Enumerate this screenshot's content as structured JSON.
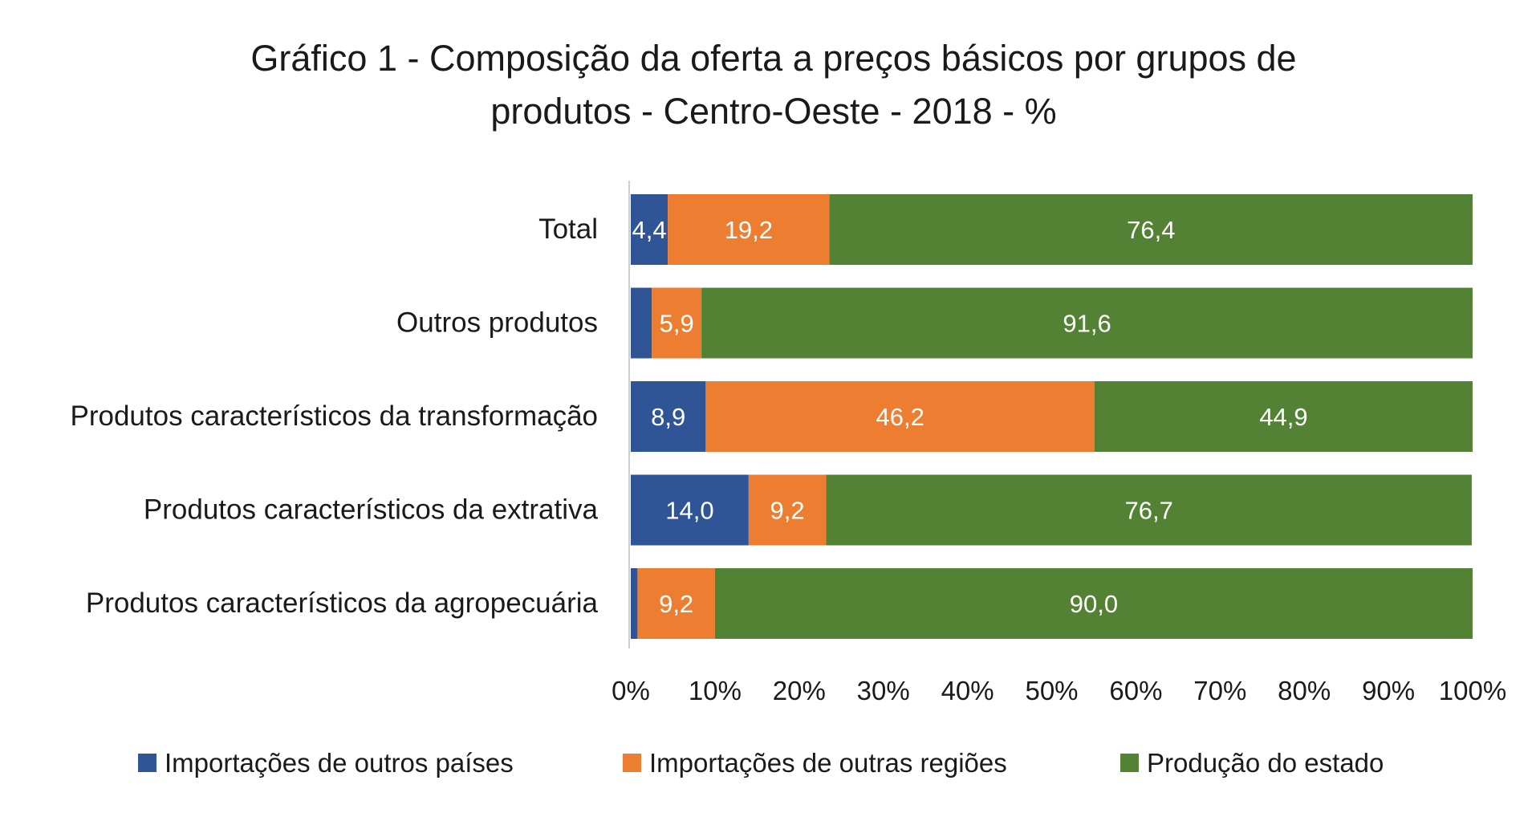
{
  "chart_data": {
    "type": "bar",
    "orientation": "horizontal",
    "stacked": true,
    "percent": true,
    "title_lines": [
      "Gráfico 1 - Composição da oferta a preços básicos por grupos de",
      "produtos - Centro-Oeste - 2018 - %"
    ],
    "categories": [
      "Total",
      "Outros produtos",
      "Produtos característicos da transformação",
      "Produtos característicos da extrativa",
      "Produtos característicos da agropecuária"
    ],
    "series": [
      {
        "name": "Importações de outros países",
        "color": "#2F5597",
        "values": [
          4.4,
          2.5,
          8.9,
          14.0,
          0.8
        ],
        "labels": [
          "4,4",
          "",
          "8,9",
          "14,0",
          ""
        ]
      },
      {
        "name": "Importações de outras regiões",
        "color": "#ED7D31",
        "values": [
          19.2,
          5.9,
          46.2,
          9.2,
          9.2
        ],
        "labels": [
          "19,2",
          "5,9",
          "46,2",
          "9,2",
          "9,2"
        ]
      },
      {
        "name": "Produção do estado",
        "color": "#548235",
        "values": [
          76.4,
          91.6,
          44.9,
          76.7,
          90.0
        ],
        "labels": [
          "76,4",
          "91,6",
          "44,9",
          "76,7",
          "90,0"
        ]
      }
    ],
    "x_ticks": [
      "0%",
      "10%",
      "20%",
      "30%",
      "40%",
      "50%",
      "60%",
      "70%",
      "80%",
      "90%",
      "100%"
    ],
    "xlim": [
      0,
      100
    ],
    "grid": false,
    "legend_position": "bottom"
  }
}
